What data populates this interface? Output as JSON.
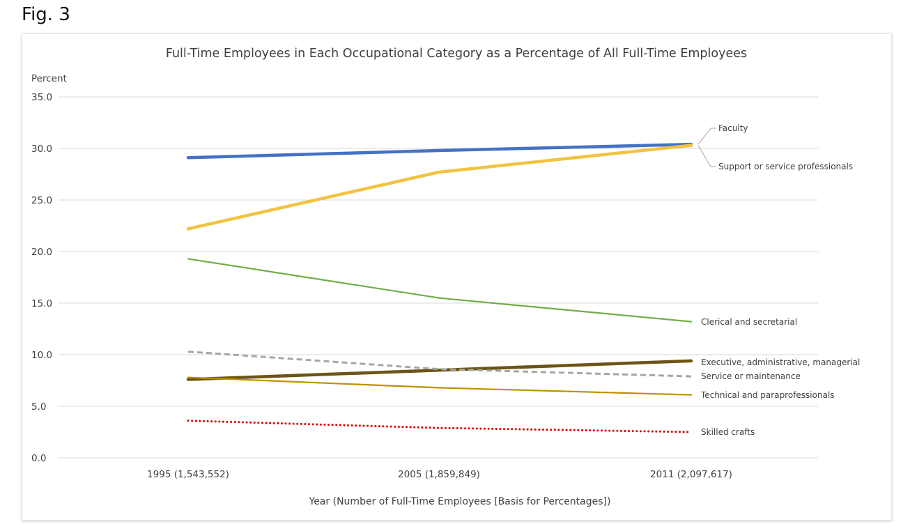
{
  "figure_label": "Fig. 3",
  "chart_data": {
    "type": "line",
    "title": "Full-Time Employees in Each Occupational Category as a Percentage of All Full-Time Employees",
    "ylabel": "Percent",
    "xlabel": "Year (Number of Full-Time Employees [Basis for Percentages])",
    "categories": [
      "1995 (1,543,552)",
      "2005 (1,859,849)",
      "2011 (2,097,617)"
    ],
    "ylim": [
      0,
      35
    ],
    "yticks": [
      "0.0",
      "5.0",
      "10.0",
      "15.0",
      "20.0",
      "25.0",
      "30.0",
      "35.0"
    ],
    "grid": true,
    "legend": "direct labels at right end of lines",
    "series": [
      {
        "name": "Faculty",
        "values": [
          29.1,
          29.8,
          30.4
        ],
        "color": "#4472C4",
        "style": "solid-thick"
      },
      {
        "name": "Support or service professionals",
        "values": [
          22.2,
          27.7,
          30.3
        ],
        "color": "#F2C342",
        "style": "solid-thick"
      },
      {
        "name": "Clerical and secretarial",
        "values": [
          19.3,
          15.5,
          13.2
        ],
        "color": "#70AD47",
        "style": "solid"
      },
      {
        "name": "Executive, administrative, managerial",
        "values": [
          7.6,
          8.5,
          9.4
        ],
        "color": "#6B5516",
        "style": "solid-thick"
      },
      {
        "name": "Service or maintenance",
        "values": [
          10.3,
          8.6,
          7.9
        ],
        "color": "#A6A6A6",
        "style": "dashed"
      },
      {
        "name": "Technical and paraprofessionals",
        "values": [
          7.8,
          6.8,
          6.1
        ],
        "color": "#BF9000",
        "style": "solid"
      },
      {
        "name": "Skilled crafts",
        "values": [
          3.6,
          2.9,
          2.5
        ],
        "color": "#E00000",
        "style": "dotted"
      }
    ]
  }
}
